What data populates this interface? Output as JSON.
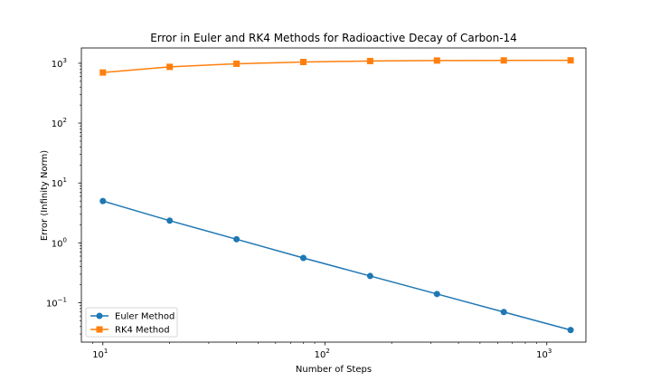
{
  "chart_data": {
    "type": "line",
    "title": "Error in Euler and RK4 Methods for Radioactive Decay of Carbon-14",
    "xlabel": "Number of Steps",
    "ylabel": "Error (Infinity Norm)",
    "xscale": "log",
    "yscale": "log",
    "xlim": [
      8,
      1500
    ],
    "ylim": [
      0.022,
      1800
    ],
    "x": [
      10,
      20,
      40,
      80,
      160,
      320,
      640,
      1280
    ],
    "x_ticks": [
      {
        "value": 10,
        "base": "10",
        "exp": "1"
      },
      {
        "value": 100,
        "base": "10",
        "exp": "2"
      },
      {
        "value": 1000,
        "base": "10",
        "exp": "3"
      }
    ],
    "y_ticks": [
      {
        "value": 0.1,
        "base": "10",
        "exp": "−1"
      },
      {
        "value": 1,
        "base": "10",
        "exp": "0"
      },
      {
        "value": 10,
        "base": "10",
        "exp": "1"
      },
      {
        "value": 100,
        "base": "10",
        "exp": "2"
      },
      {
        "value": 1000,
        "base": "10",
        "exp": "3"
      }
    ],
    "grid": false,
    "legend_position": "lower-left",
    "series": [
      {
        "name": "Euler Method",
        "color": "#1f77b4",
        "marker": "circle",
        "values": [
          5.0,
          2.35,
          1.15,
          0.56,
          0.28,
          0.14,
          0.07,
          0.035
        ]
      },
      {
        "name": "RK4 Method",
        "color": "#ff7f0e",
        "marker": "square",
        "values": [
          700,
          870,
          980,
          1050,
          1090,
          1110,
          1115,
          1118
        ]
      }
    ]
  }
}
